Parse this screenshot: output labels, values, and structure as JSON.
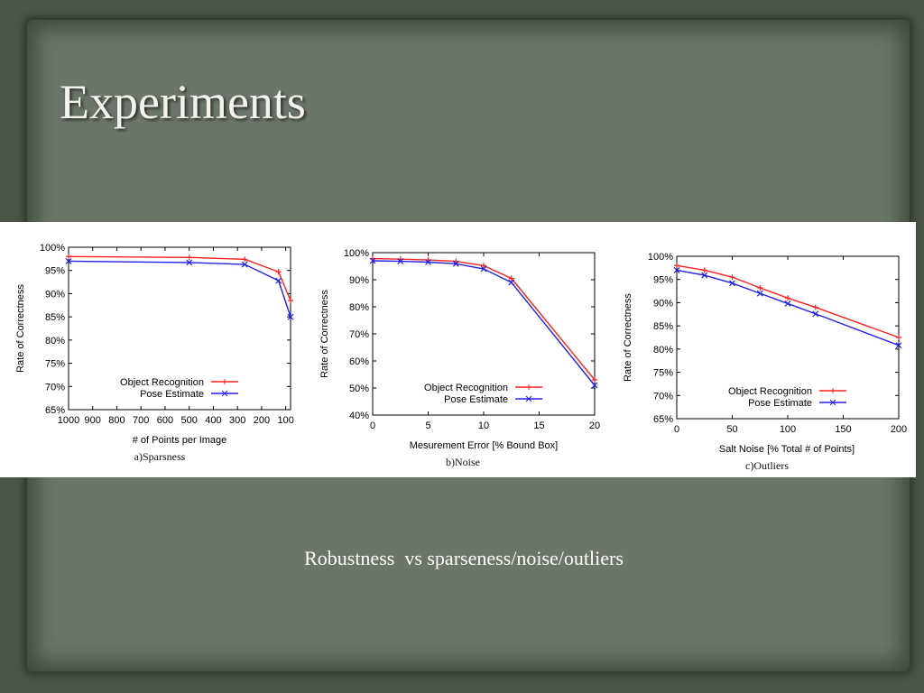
{
  "slide": {
    "title": "Experiments",
    "caption": "Robustness  vs sparseness/noise/outliers"
  },
  "colors": {
    "object_recognition": "#ff2020",
    "pose_estimate": "#2020e8",
    "background": "#4a5546",
    "panel": "#6b7668"
  },
  "chart_data": [
    {
      "type": "line",
      "subcaption": "a)Sparsness",
      "xlabel": "# of Points per Image",
      "ylabel": "Rate of Correctness",
      "xlim": [
        1000,
        80
      ],
      "x_reversed": true,
      "ylim": [
        65,
        100
      ],
      "xticks": [
        1000,
        900,
        800,
        700,
        600,
        500,
        400,
        300,
        200,
        100
      ],
      "xtick_labels": [
        "1000",
        "900",
        "800",
        "700",
        "600",
        "500",
        "400",
        "300",
        "200",
        "100"
      ],
      "yticks": [
        65,
        70,
        75,
        80,
        85,
        90,
        95,
        100
      ],
      "ytick_labels": [
        "65%",
        "70%",
        "75%",
        "80%",
        "85%",
        "90%",
        "95%",
        "100%"
      ],
      "legend_position": "bottom-right",
      "grid": false,
      "series": [
        {
          "name": "Object Recognition",
          "color": "#ff2020",
          "marker": "plus",
          "x": [
            1000,
            500,
            270,
            130,
            80
          ],
          "y": [
            98.0,
            97.8,
            97.4,
            94.7,
            88.5
          ]
        },
        {
          "name": "Pose Estimate",
          "color": "#2020e8",
          "marker": "cross",
          "x": [
            1000,
            500,
            270,
            130,
            80
          ],
          "y": [
            97.0,
            96.7,
            96.3,
            92.8,
            85.0
          ]
        }
      ]
    },
    {
      "type": "line",
      "subcaption": "b)Noise",
      "xlabel": "Mesurement Error [% Bound Box]",
      "ylabel": "Rate of Correctness",
      "xlim": [
        0,
        20
      ],
      "x_reversed": false,
      "ylim": [
        40,
        100
      ],
      "xticks": [
        0,
        5,
        10,
        15,
        20
      ],
      "xtick_labels": [
        "0",
        "5",
        "10",
        "15",
        "20"
      ],
      "yticks": [
        40,
        50,
        60,
        70,
        80,
        90,
        100
      ],
      "ytick_labels": [
        "40%",
        "50%",
        "60%",
        "70%",
        "80%",
        "90%",
        "100%"
      ],
      "legend_position": "bottom-right",
      "grid": false,
      "series": [
        {
          "name": "Object Recognition",
          "color": "#ff2020",
          "marker": "plus",
          "x": [
            0,
            2.5,
            5,
            7.5,
            10,
            12.5,
            20
          ],
          "y": [
            97.8,
            97.6,
            97.3,
            96.8,
            95.2,
            90.5,
            53.0
          ]
        },
        {
          "name": "Pose Estimate",
          "color": "#2020e8",
          "marker": "cross",
          "x": [
            0,
            2.5,
            5,
            7.5,
            10,
            12.5,
            20
          ],
          "y": [
            97.0,
            96.8,
            96.5,
            95.9,
            94.0,
            89.0,
            51.0
          ]
        }
      ]
    },
    {
      "type": "line",
      "subcaption": "c)Outliers",
      "xlabel": "Salt Noise [% Total # of Points]",
      "ylabel": "Rate of Correctness",
      "xlim": [
        0,
        200
      ],
      "x_reversed": false,
      "ylim": [
        65,
        100
      ],
      "xticks": [
        0,
        50,
        100,
        150,
        200
      ],
      "xtick_labels": [
        "0",
        "50",
        "100",
        "150",
        "200"
      ],
      "yticks": [
        65,
        70,
        75,
        80,
        85,
        90,
        95,
        100
      ],
      "ytick_labels": [
        "65%",
        "70%",
        "75%",
        "80%",
        "85%",
        "90%",
        "95%",
        "100%"
      ],
      "legend_position": "bottom-right",
      "grid": false,
      "series": [
        {
          "name": "Object Recognition",
          "color": "#ff2020",
          "marker": "plus",
          "x": [
            0,
            25,
            50,
            75,
            100,
            125,
            200
          ],
          "y": [
            98.0,
            97.0,
            95.5,
            93.2,
            91.0,
            89.0,
            82.5
          ]
        },
        {
          "name": "Pose Estimate",
          "color": "#2020e8",
          "marker": "cross",
          "x": [
            0,
            25,
            50,
            75,
            100,
            125,
            200
          ],
          "y": [
            97.0,
            95.9,
            94.2,
            92.0,
            89.8,
            87.6,
            80.8
          ]
        }
      ]
    }
  ]
}
